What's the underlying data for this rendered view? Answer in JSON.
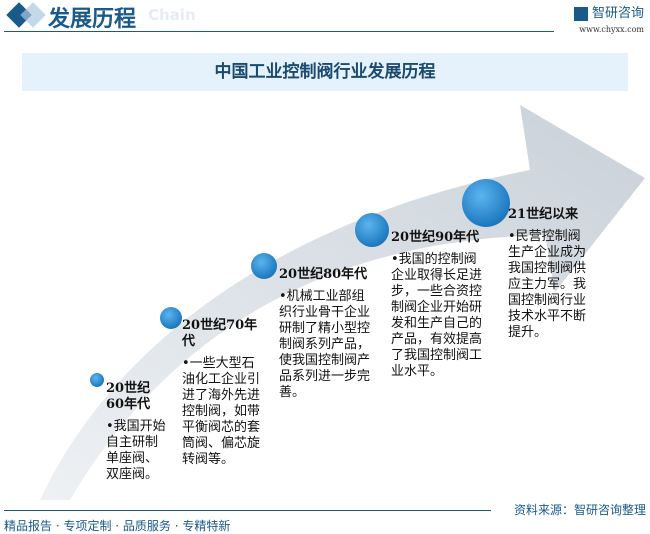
{
  "header": {
    "title": "发展历程",
    "ghost_text": "Chain",
    "logo_name": "智研咨询",
    "logo_url": "www.chyxx.com"
  },
  "banner": {
    "title": "中国工业控制阀行业发展历程"
  },
  "stages": [
    {
      "title": "20世纪60年代",
      "desc": "•我国开始自主研制单座阀、双座阀。"
    },
    {
      "title": "20世纪70年代",
      "desc": "•一些大型石油化工企业引进了海外先进控制阀，如带平衡阀芯的套筒阀、偏芯旋转阀等。"
    },
    {
      "title": "20世纪80年代",
      "desc": "•机械工业部组织行业骨干企业研制了精小型控制阀系列产品，使我国控制阀产品系列进一步完善。"
    },
    {
      "title": "20世纪90年代",
      "desc": "•我国的控制阀企业取得长足进步，一些合资控制阀企业开始研发和生产自己的产品，有效提高了我国控制阀工业水平。"
    },
    {
      "title": "21世纪以来",
      "desc": "•民营控制阀生产企业成为我国控制阀供应主力军。我国控制阀行业技术水平不断提升。"
    }
  ],
  "footer": {
    "source": "资料来源：智研咨询整理",
    "slogan": "精品报告 · 专项定制 · 品质服务 · 专精特新"
  },
  "colors": {
    "brand": "#1a5a8a",
    "banner_bg": "#e5f1fb",
    "arrow": "#d3d9e0",
    "dot": "#1e7ac0"
  }
}
